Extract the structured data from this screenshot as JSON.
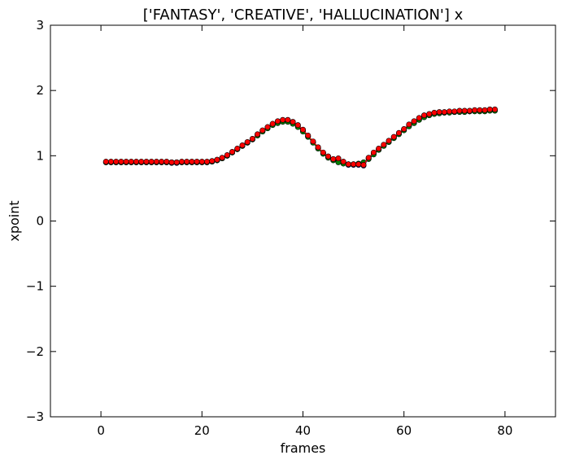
{
  "chart_data": {
    "type": "line",
    "title": "['FANTASY', 'CREATIVE', 'HALLUCINATION'] x",
    "xlabel": "frames",
    "ylabel": "xpoint",
    "xlim": [
      -10,
      90
    ],
    "ylim": [
      -3,
      3
    ],
    "x_ticks": [
      0,
      20,
      40,
      60,
      80
    ],
    "y_ticks": [
      -3,
      -2,
      -1,
      0,
      1,
      2,
      3
    ],
    "x_tick_labels": [
      "0",
      "20",
      "40",
      "60",
      "80"
    ],
    "y_tick_labels": [
      "−3",
      "−2",
      "−1",
      "0",
      "1",
      "2",
      "3"
    ],
    "grid": false,
    "x": [
      1,
      2,
      3,
      4,
      5,
      6,
      7,
      8,
      9,
      10,
      11,
      12,
      13,
      14,
      15,
      16,
      17,
      18,
      19,
      20,
      21,
      22,
      23,
      24,
      25,
      26,
      27,
      28,
      29,
      30,
      31,
      32,
      33,
      34,
      35,
      36,
      37,
      38,
      39,
      40,
      41,
      42,
      43,
      44,
      45,
      46,
      47,
      48,
      49,
      50,
      51,
      52,
      53,
      54,
      55,
      56,
      57,
      58,
      59,
      60,
      61,
      62,
      63,
      64,
      65,
      66,
      67,
      68,
      69,
      70,
      71,
      72,
      73,
      74,
      75,
      76,
      77,
      78
    ],
    "series": [
      {
        "color": "#0000ff",
        "marker_fill": "#0000ff",
        "values": [
          0.9,
          0.9,
          0.9,
          0.9,
          0.9,
          0.9,
          0.9,
          0.9,
          0.9,
          0.9,
          0.9,
          0.9,
          0.9,
          0.89,
          0.89,
          0.9,
          0.9,
          0.9,
          0.9,
          0.9,
          0.9,
          0.91,
          0.93,
          0.96,
          1.0,
          1.05,
          1.1,
          1.15,
          1.2,
          1.25,
          1.32,
          1.38,
          1.43,
          1.48,
          1.52,
          1.54,
          1.54,
          1.51,
          1.46,
          1.39,
          1.3,
          1.21,
          1.12,
          1.04,
          0.98,
          0.94,
          0.95,
          0.9,
          0.86,
          0.86,
          0.86,
          0.85,
          0.96,
          1.04,
          1.1,
          1.16,
          1.22,
          1.28,
          1.34,
          1.4,
          1.47,
          1.52,
          1.57,
          1.61,
          1.63,
          1.65,
          1.66,
          1.66,
          1.67,
          1.67,
          1.68,
          1.68,
          1.68,
          1.69,
          1.69,
          1.69,
          1.7,
          1.7
        ]
      },
      {
        "color": "#008000",
        "marker_fill": "#008000",
        "values": [
          0.9,
          0.9,
          0.9,
          0.9,
          0.9,
          0.9,
          0.9,
          0.9,
          0.9,
          0.9,
          0.9,
          0.9,
          0.9,
          0.9,
          0.9,
          0.9,
          0.9,
          0.9,
          0.9,
          0.9,
          0.9,
          0.91,
          0.93,
          0.96,
          1.0,
          1.05,
          1.1,
          1.15,
          1.2,
          1.25,
          1.31,
          1.37,
          1.42,
          1.47,
          1.5,
          1.52,
          1.52,
          1.49,
          1.44,
          1.37,
          1.29,
          1.2,
          1.11,
          1.03,
          0.97,
          0.93,
          0.9,
          0.88,
          0.87,
          0.87,
          0.88,
          0.9,
          0.95,
          1.02,
          1.09,
          1.15,
          1.21,
          1.27,
          1.33,
          1.39,
          1.45,
          1.5,
          1.55,
          1.59,
          1.62,
          1.64,
          1.65,
          1.66,
          1.66,
          1.67,
          1.67,
          1.67,
          1.68,
          1.68,
          1.68,
          1.68,
          1.69,
          1.69
        ]
      },
      {
        "color": "#ff0000",
        "marker_fill": "#ff0000",
        "values": [
          0.91,
          0.91,
          0.91,
          0.91,
          0.91,
          0.91,
          0.91,
          0.91,
          0.91,
          0.91,
          0.91,
          0.91,
          0.91,
          0.9,
          0.9,
          0.91,
          0.91,
          0.91,
          0.91,
          0.91,
          0.91,
          0.92,
          0.94,
          0.97,
          1.01,
          1.06,
          1.11,
          1.16,
          1.21,
          1.26,
          1.33,
          1.39,
          1.44,
          1.49,
          1.53,
          1.55,
          1.55,
          1.52,
          1.47,
          1.4,
          1.31,
          1.22,
          1.13,
          1.05,
          0.99,
          0.95,
          0.96,
          0.91,
          0.87,
          0.87,
          0.87,
          0.86,
          0.97,
          1.05,
          1.11,
          1.17,
          1.23,
          1.29,
          1.35,
          1.41,
          1.48,
          1.53,
          1.58,
          1.62,
          1.64,
          1.66,
          1.67,
          1.67,
          1.68,
          1.68,
          1.69,
          1.69,
          1.69,
          1.7,
          1.7,
          1.7,
          1.71,
          1.71
        ]
      }
    ]
  }
}
